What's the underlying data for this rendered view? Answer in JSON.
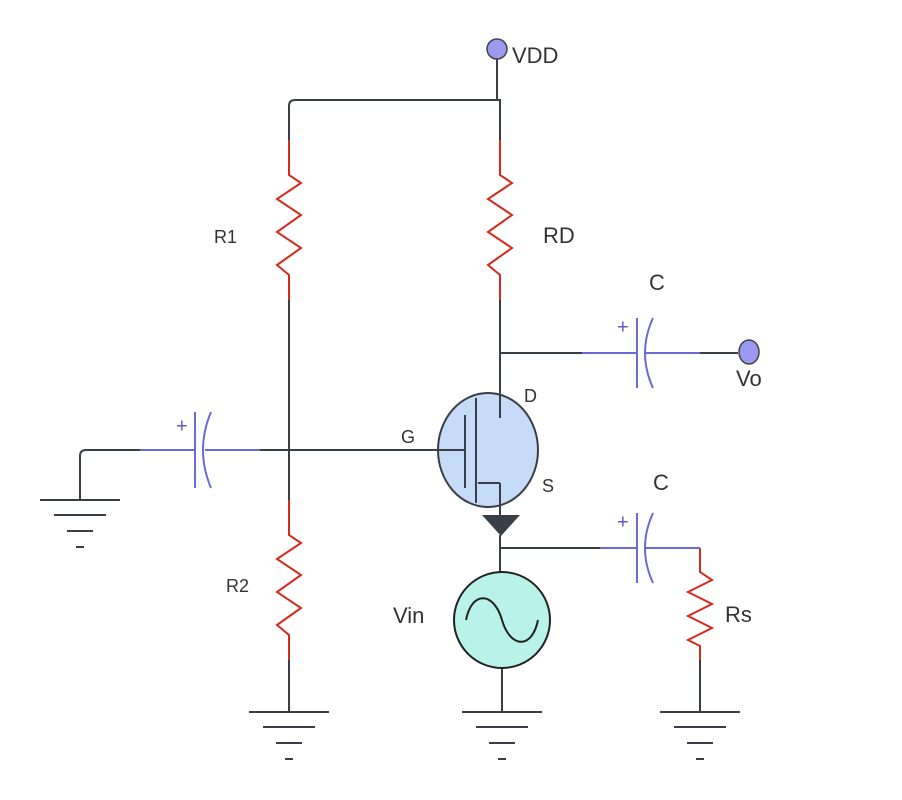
{
  "supply": "VDD",
  "output": "Vo",
  "input": "Vin",
  "resistors": {
    "r1": "R1",
    "rd": "RD",
    "r2": "R2",
    "rs": "Rs"
  },
  "capacitors": [
    {
      "polarity": "+"
    },
    {
      "label": "C",
      "polarity": "+"
    },
    {
      "label": "C",
      "polarity": "+"
    }
  ],
  "transistor": {
    "gate": "G",
    "drain": "D",
    "source": "S"
  }
}
